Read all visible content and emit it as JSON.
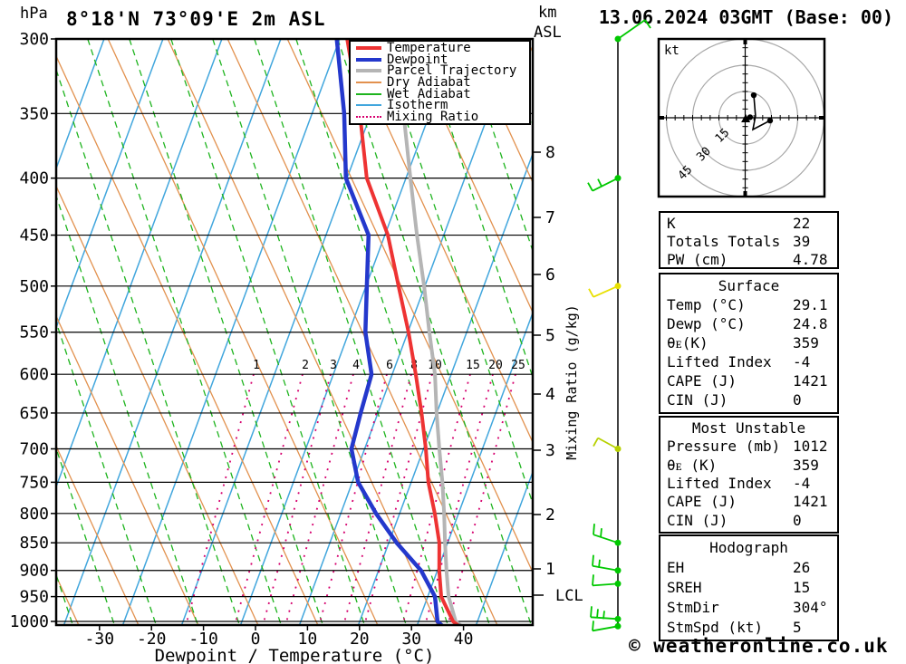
{
  "header": {
    "pressure_unit": "hPa",
    "title": "8°18'N 73°09'E 2m ASL",
    "altitude_unit_top": "km",
    "altitude_unit_bottom": "ASL",
    "datetime": "13.06.2024 03GMT (Base: 00)"
  },
  "legend": {
    "items": [
      {
        "label": "Temperature",
        "color": "#ee3333",
        "thickness": 4,
        "style": "solid"
      },
      {
        "label": "Dewpoint",
        "color": "#2438cc",
        "thickness": 4,
        "style": "solid"
      },
      {
        "label": "Parcel Trajectory",
        "color": "#b5b5b5",
        "thickness": 4,
        "style": "solid"
      },
      {
        "label": "Dry Adiabat",
        "color": "#e2914e",
        "thickness": 2,
        "style": "solid"
      },
      {
        "label": "Wet Adiabat",
        "color": "#1eb41e",
        "thickness": 2,
        "style": "solid"
      },
      {
        "label": "Isotherm",
        "color": "#41a6dd",
        "thickness": 2,
        "style": "solid"
      },
      {
        "label": "Mixing Ratio",
        "color": "#d6006e",
        "thickness": 2,
        "style": "dotted"
      }
    ]
  },
  "axes": {
    "pressure_ticks": [
      300,
      350,
      400,
      450,
      500,
      550,
      600,
      650,
      700,
      750,
      800,
      850,
      900,
      950,
      1000
    ],
    "temp_ticks": [
      -30,
      -20,
      -10,
      0,
      10,
      20,
      30,
      40
    ],
    "xlabel": "Dewpoint / Temperature (°C)",
    "km_ticks": [
      8,
      7,
      6,
      5,
      4,
      3,
      2,
      1
    ],
    "km_tick_y": [
      168,
      240,
      303,
      370,
      435,
      497,
      568,
      628
    ],
    "lcl_label": "LCL",
    "mixing_ratio_axis_label": "Mixing Ratio (g/kg)"
  },
  "chart_data": {
    "type": "line",
    "subtype": "skew-t log-p sounding",
    "title": "8°18'N 73°09'E 2m ASL — 13.06.2024 03GMT (Base: 00)",
    "xlabel": "Dewpoint / Temperature (°C)",
    "ylabel": "hPa",
    "xlim": [
      -40,
      40
    ],
    "pressure_lim_hPa": [
      300,
      1012
    ],
    "grid": "skewed (isotherms, dry/wet adiabats, mixing ratio lines)",
    "legend_position": "top-right inset",
    "pressure_hPa": [
      300,
      350,
      400,
      450,
      500,
      550,
      600,
      650,
      700,
      750,
      800,
      850,
      900,
      950,
      1000,
      1012
    ],
    "series": [
      {
        "name": "Temperature",
        "unit": "°C (plot-skew estimate)",
        "values": [
          -22.7,
          -15.1,
          -9.3,
          -1.3,
          4.3,
          9.4,
          13.7,
          17.5,
          20.8,
          23.6,
          27.0,
          29.9,
          31.8,
          34.0,
          38.0,
          39.8
        ]
      },
      {
        "name": "Dewpoint",
        "unit": "°C (plot-skew estimate)",
        "values": [
          -24.7,
          -18.1,
          -13.3,
          -5.0,
          -1.8,
          1.1,
          5.2,
          5.8,
          6.5,
          10.1,
          15.7,
          21.7,
          28.3,
          32.8,
          35.0,
          36.6
        ]
      },
      {
        "name": "Parcel Trajectory",
        "unit": "°C (plot-skew estimate)",
        "values": [
          null,
          -6.7,
          -0.9,
          4.3,
          9.2,
          13.4,
          17.4,
          20.4,
          23.4,
          26.3,
          28.8,
          31.0,
          33.2,
          35.4,
          38.5,
          40.3
        ]
      }
    ],
    "mixing_ratio_labels_g_per_kg": [
      1,
      2,
      3,
      4,
      6,
      8,
      10,
      15,
      20,
      25
    ],
    "lcl_km_axis_y": 657
  },
  "winds": {
    "unit": "kt",
    "levels": [
      {
        "p": 300,
        "color": "#00c800",
        "segments": [
          [
            0,
            0,
            30,
            -21
          ],
          [
            30,
            -21,
            36,
            -12
          ]
        ]
      },
      {
        "p": 400,
        "color": "#00c800",
        "segments": [
          [
            0,
            0,
            -28,
            14
          ],
          [
            -28,
            14,
            -33,
            5
          ],
          [
            -18,
            9,
            -22,
            1
          ]
        ]
      },
      {
        "p": 500,
        "color": "#e8e000",
        "segments": [
          [
            0,
            0,
            -27,
            12
          ],
          [
            -27,
            12,
            -32,
            3
          ]
        ]
      },
      {
        "p": 700,
        "color": "#b7d100",
        "segments": [
          [
            0,
            0,
            -22,
            -12
          ],
          [
            -22,
            -12,
            -27,
            -3
          ]
        ]
      },
      {
        "p": 850,
        "color": "#00c800",
        "segments": [
          [
            0,
            0,
            -27,
            -9
          ],
          [
            -27,
            -9,
            -26,
            -21
          ],
          [
            -19,
            -6,
            -18,
            -16
          ]
        ]
      },
      {
        "p": 900,
        "color": "#00c800",
        "segments": [
          [
            0,
            0,
            -28,
            -5
          ],
          [
            -28,
            -5,
            -27,
            -17
          ],
          [
            -21,
            -3,
            -20,
            -12
          ]
        ]
      },
      {
        "p": 925,
        "color": "#00c800",
        "segments": [
          [
            0,
            0,
            -28,
            2
          ],
          [
            -28,
            2,
            -27,
            -10
          ]
        ]
      },
      {
        "p": 995,
        "color": "#00c800",
        "segments": [
          [
            0,
            0,
            -30,
            -2
          ],
          [
            -30,
            -2,
            -29,
            -14
          ],
          [
            -23,
            -1,
            -22,
            -11
          ],
          [
            -16,
            0,
            -15,
            -9
          ]
        ]
      },
      {
        "p": 1010,
        "color": "#00c800",
        "segments": [
          [
            0,
            0,
            -28,
            5
          ],
          [
            -28,
            5,
            -27,
            -6
          ]
        ]
      }
    ]
  },
  "hodograph": {
    "unit_label": "kt",
    "ring_values_kt": [
      15,
      30,
      45
    ],
    "trace_kt": [
      [
        4.9,
        -12.9
      ],
      [
        5.9,
        -1.0
      ],
      [
        4.4,
        6.7
      ],
      [
        14.2,
        1.6
      ]
    ],
    "trace_dots_kt": [
      [
        4.9,
        -12.9
      ],
      [
        2.8,
        -0.3
      ],
      [
        14.2,
        1.6
      ]
    ],
    "storm_marker_kt": [
      0.3,
      0.5
    ]
  },
  "tables": [
    {
      "title": null,
      "rows": [
        [
          "K",
          "22"
        ],
        [
          "Totals Totals",
          "39"
        ],
        [
          "PW (cm)",
          "4.78"
        ]
      ]
    },
    {
      "title": "Surface",
      "rows": [
        [
          "Temp (°C)",
          "29.1"
        ],
        [
          "Dewp (°C)",
          "24.8"
        ],
        [
          "θᴇ(K)",
          "359"
        ],
        [
          "Lifted Index",
          "-4"
        ],
        [
          "CAPE (J)",
          "1421"
        ],
        [
          "CIN (J)",
          "0"
        ]
      ]
    },
    {
      "title": "Most Unstable",
      "rows": [
        [
          "Pressure (mb)",
          "1012"
        ],
        [
          "θᴇ (K)",
          "359"
        ],
        [
          "Lifted Index",
          "-4"
        ],
        [
          "CAPE (J)",
          "1421"
        ],
        [
          "CIN (J)",
          "0"
        ]
      ]
    },
    {
      "title": "Hodograph",
      "rows": [
        [
          "EH",
          "26"
        ],
        [
          "SREH",
          "15"
        ],
        [
          "StmDir",
          "304°"
        ],
        [
          "StmSpd (kt)",
          "5"
        ]
      ]
    }
  ],
  "footer": {
    "credit": "© weatheronline.co.uk"
  }
}
